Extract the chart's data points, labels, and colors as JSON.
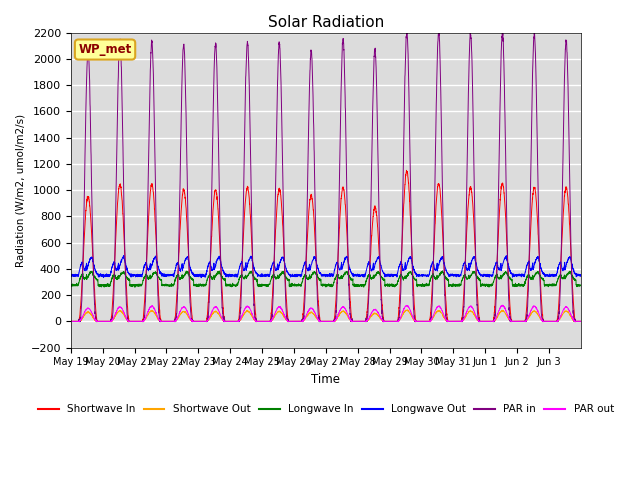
{
  "title": "Solar Radiation",
  "xlabel": "Time",
  "ylabel": "Radiation (W/m2, umol/m2/s)",
  "ylim": [
    -200,
    2200
  ],
  "yticks": [
    -200,
    0,
    200,
    400,
    600,
    800,
    1000,
    1200,
    1400,
    1600,
    1800,
    2000,
    2200
  ],
  "xtick_labels": [
    "May 19",
    "May 20",
    "May 21",
    "May 22",
    "May 23",
    "May 24",
    "May 25",
    "May 26",
    "May 27",
    "May 28",
    "May 29",
    "May 30",
    "May 31",
    "Jun 1",
    "Jun 2",
    "Jun 3"
  ],
  "legend_entries": [
    "Shortwave In",
    "Shortwave Out",
    "Longwave In",
    "Longwave Out",
    "PAR in",
    "PAR out"
  ],
  "legend_colors": [
    "red",
    "orange",
    "green",
    "blue",
    "purple",
    "magenta"
  ],
  "annotation_text": "WP_met",
  "annotation_color": "#8B0000",
  "annotation_bg": "#FFFF99",
  "annotation_border": "#DAA520",
  "background_color": "#DCDCDC",
  "grid_color": "white",
  "n_days": 16,
  "dt": 0.1,
  "shortwave_in_peaks": [
    950,
    1040,
    1040,
    1000,
    1000,
    1020,
    1010,
    960,
    1020,
    870,
    1140,
    1050,
    1020,
    1050,
    1020,
    1020
  ],
  "par_in_peaks": [
    2050,
    2150,
    2130,
    2110,
    2110,
    2130,
    2120,
    2060,
    2150,
    2070,
    2200,
    2200,
    2190,
    2200,
    2180,
    2140
  ],
  "par_out_peaks": [
    100,
    110,
    115,
    110,
    110,
    115,
    110,
    100,
    110,
    90,
    120,
    115,
    115,
    120,
    115,
    110
  ],
  "shortwave_out_peaks": [
    70,
    80,
    80,
    75,
    75,
    78,
    75,
    68,
    78,
    60,
    85,
    80,
    78,
    80,
    78,
    78
  ],
  "lw_in_base": 335,
  "lw_in_range": [
    270,
    400
  ],
  "lw_out_base": 390,
  "lw_out_range": [
    340,
    520
  ]
}
